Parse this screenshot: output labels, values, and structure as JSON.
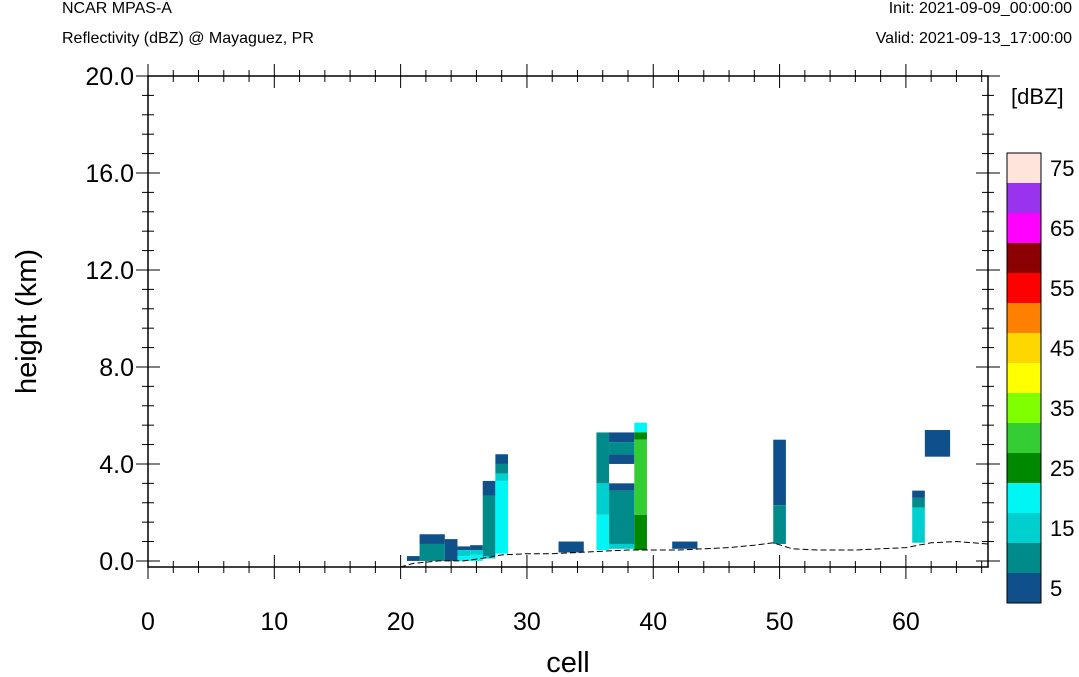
{
  "header": {
    "model": "NCAR MPAS-A",
    "field": "Reflectivity (dBZ) @ Mayaguez, PR",
    "init": "Init: 2021-09-09_00:00:00",
    "valid": "Valid: 2021-09-13_17:00:00"
  },
  "chart_data": {
    "type": "heatmap",
    "xlabel": "cell",
    "ylabel": "height (km)",
    "xlim": [
      0,
      66.5
    ],
    "ylim": [
      -0.25,
      20.0
    ],
    "x_ticks": [
      "0",
      "10",
      "20",
      "30",
      "40",
      "50",
      "60"
    ],
    "y_ticks": [
      "0.0",
      "4.0",
      "8.0",
      "12.0",
      "16.0",
      "20.0"
    ],
    "colorbar": {
      "unit": "[dBZ]",
      "levels": [
        5,
        10,
        15,
        20,
        25,
        30,
        35,
        40,
        45,
        50,
        55,
        60,
        65,
        70,
        75
      ],
      "labels": [
        "5",
        "15",
        "25",
        "35",
        "45",
        "55",
        "65",
        "75"
      ],
      "colors": [
        "#0f4f8a",
        "#008a8a",
        "#00cfcf",
        "#00f5f5",
        "#008800",
        "#33cc33",
        "#7fff00",
        "#ffff00",
        "#ffd700",
        "#ff8000",
        "#ff0000",
        "#8b0000",
        "#ff00ff",
        "#9933ee",
        "#ffe4dc"
      ]
    },
    "terrain": [
      [
        0,
        -0.25
      ],
      [
        20,
        -0.25
      ],
      [
        21,
        -0.1
      ],
      [
        23,
        0
      ],
      [
        25,
        0
      ],
      [
        27,
        0.15
      ],
      [
        28,
        0.25
      ],
      [
        30,
        0.3
      ],
      [
        32,
        0.3
      ],
      [
        34,
        0.35
      ],
      [
        36,
        0.4
      ],
      [
        38,
        0.45
      ],
      [
        40,
        0.45
      ],
      [
        42,
        0.45
      ],
      [
        44,
        0.5
      ],
      [
        46,
        0.55
      ],
      [
        48,
        0.65
      ],
      [
        49.5,
        0.75
      ],
      [
        51,
        0.5
      ],
      [
        53,
        0.45
      ],
      [
        56,
        0.45
      ],
      [
        58,
        0.5
      ],
      [
        60,
        0.55
      ],
      [
        61,
        0.65
      ],
      [
        62,
        0.75
      ],
      [
        64,
        0.8
      ],
      [
        66.5,
        0.7
      ]
    ],
    "cells": [
      {
        "x": [
          20.5,
          21.5
        ],
        "y": [
          0.0,
          0.2
        ],
        "dbz": 5
      },
      {
        "x": [
          21.5,
          23.5
        ],
        "y": [
          0.7,
          1.1
        ],
        "dbz": 5
      },
      {
        "x": [
          21.5,
          23.5
        ],
        "y": [
          0.0,
          0.7
        ],
        "dbz": 10
      },
      {
        "x": [
          23.5,
          24.5
        ],
        "y": [
          0.0,
          0.9
        ],
        "dbz": 5
      },
      {
        "x": [
          24.5,
          25.5
        ],
        "y": [
          0.45,
          0.6
        ],
        "dbz": 5
      },
      {
        "x": [
          24.5,
          25.5
        ],
        "y": [
          0.2,
          0.45
        ],
        "dbz": 15
      },
      {
        "x": [
          24.5,
          25.5
        ],
        "y": [
          0.0,
          0.2
        ],
        "dbz": 20
      },
      {
        "x": [
          25.5,
          26.5
        ],
        "y": [
          0.45,
          0.65
        ],
        "dbz": 5
      },
      {
        "x": [
          25.5,
          26.5
        ],
        "y": [
          0.25,
          0.45
        ],
        "dbz": 15
      },
      {
        "x": [
          25.5,
          26.5
        ],
        "y": [
          0.0,
          0.25
        ],
        "dbz": 20
      },
      {
        "x": [
          26.5,
          27.5
        ],
        "y": [
          2.7,
          3.3
        ],
        "dbz": 5
      },
      {
        "x": [
          26.5,
          27.5
        ],
        "y": [
          0.2,
          2.7
        ],
        "dbz": 10
      },
      {
        "x": [
          26.5,
          27.5
        ],
        "y": [
          0.1,
          0.2
        ],
        "dbz": 15
      },
      {
        "x": [
          27.5,
          28.5
        ],
        "y": [
          4.0,
          4.4
        ],
        "dbz": 5
      },
      {
        "x": [
          27.5,
          28.5
        ],
        "y": [
          3.6,
          4.0
        ],
        "dbz": 10
      },
      {
        "x": [
          27.5,
          28.5
        ],
        "y": [
          3.3,
          3.6
        ],
        "dbz": 15
      },
      {
        "x": [
          27.5,
          28.5
        ],
        "y": [
          0.3,
          3.3
        ],
        "dbz": 20
      },
      {
        "x": [
          32.5,
          34.5
        ],
        "y": [
          0.35,
          0.8
        ],
        "dbz": 5
      },
      {
        "x": [
          35.5,
          36.5
        ],
        "y": [
          3.2,
          5.3
        ],
        "dbz": 10
      },
      {
        "x": [
          35.5,
          36.5
        ],
        "y": [
          1.9,
          3.2
        ],
        "dbz": 15
      },
      {
        "x": [
          35.5,
          36.5
        ],
        "y": [
          0.45,
          1.9
        ],
        "dbz": 20
      },
      {
        "x": [
          36.5,
          38.5
        ],
        "y": [
          4.9,
          5.3
        ],
        "dbz": 5
      },
      {
        "x": [
          36.5,
          38.5
        ],
        "y": [
          4.4,
          4.9
        ],
        "dbz": 10
      },
      {
        "x": [
          36.5,
          38.5
        ],
        "y": [
          4.0,
          4.4
        ],
        "dbz": 5
      },
      {
        "x": [
          36.5,
          38.5
        ],
        "y": [
          2.9,
          3.2
        ],
        "dbz": 5
      },
      {
        "x": [
          36.5,
          38.5
        ],
        "y": [
          0.7,
          2.9
        ],
        "dbz": 10
      },
      {
        "x": [
          36.5,
          38.5
        ],
        "y": [
          0.5,
          0.7
        ],
        "dbz": 15
      },
      {
        "x": [
          38.5,
          39.5
        ],
        "y": [
          5.3,
          5.7
        ],
        "dbz": 20
      },
      {
        "x": [
          38.5,
          39.5
        ],
        "y": [
          5.0,
          5.3
        ],
        "dbz": 25
      },
      {
        "x": [
          38.5,
          39.5
        ],
        "y": [
          1.9,
          5.0
        ],
        "dbz": 30
      },
      {
        "x": [
          38.5,
          39.5
        ],
        "y": [
          0.45,
          1.9
        ],
        "dbz": 25
      },
      {
        "x": [
          41.5,
          43.5
        ],
        "y": [
          0.5,
          0.8
        ],
        "dbz": 5
      },
      {
        "x": [
          49.5,
          50.5
        ],
        "y": [
          2.3,
          5.0
        ],
        "dbz": 5
      },
      {
        "x": [
          49.5,
          50.5
        ],
        "y": [
          0.7,
          2.3
        ],
        "dbz": 10
      },
      {
        "x": [
          60.5,
          61.5
        ],
        "y": [
          2.6,
          2.9
        ],
        "dbz": 5
      },
      {
        "x": [
          60.5,
          61.5
        ],
        "y": [
          2.2,
          2.6
        ],
        "dbz": 10
      },
      {
        "x": [
          60.5,
          61.5
        ],
        "y": [
          0.75,
          2.2
        ],
        "dbz": 15
      },
      {
        "x": [
          61.5,
          63.5
        ],
        "y": [
          4.3,
          5.4
        ],
        "dbz": 5
      }
    ]
  }
}
